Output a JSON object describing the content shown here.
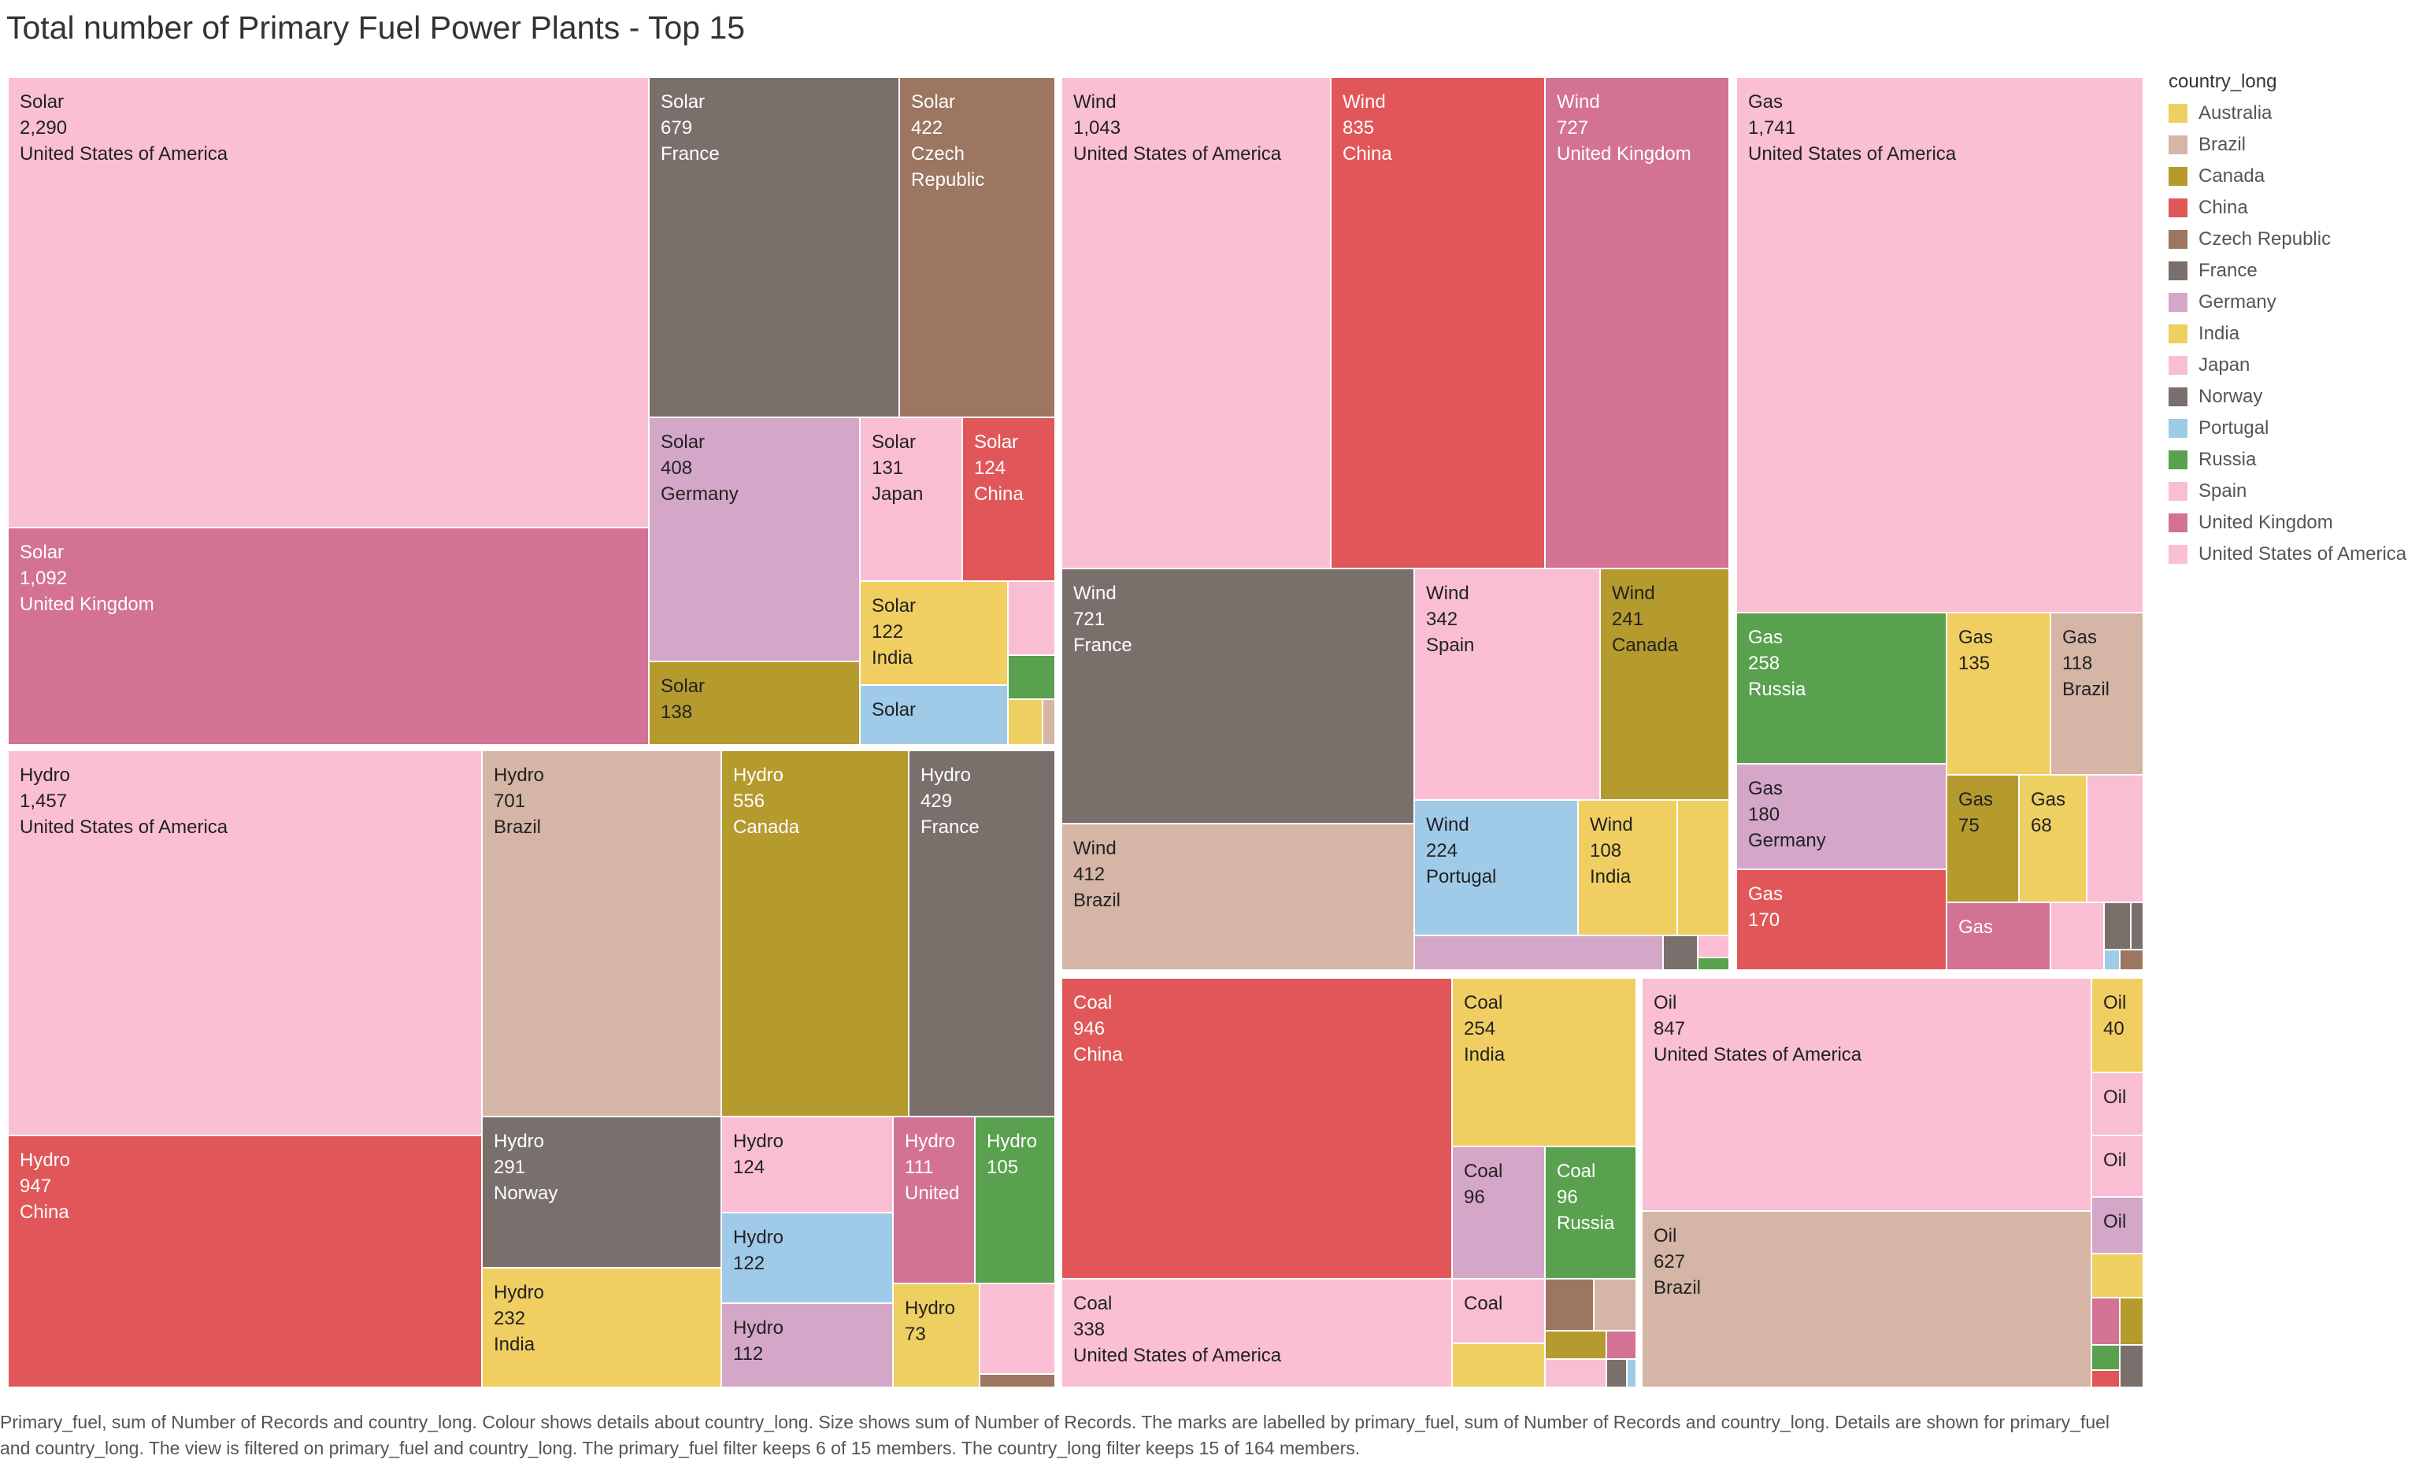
{
  "title": "Total number of Primary Fuel Power Plants - Top 15",
  "legend": {
    "title": "country_long",
    "items": [
      {
        "name": "Australia",
        "color": "#EDCF62"
      },
      {
        "name": "Brazil",
        "color": "#D5B5A5"
      },
      {
        "name": "Canada",
        "color": "#B59A2E"
      },
      {
        "name": "China",
        "color": "#E15759"
      },
      {
        "name": "Czech Republic",
        "color": "#9C7660"
      },
      {
        "name": "France",
        "color": "#7A706B"
      },
      {
        "name": "Germany",
        "color": "#D4A6C8"
      },
      {
        "name": "India",
        "color": "#F0CE62"
      },
      {
        "name": "Japan",
        "color": "#F9BED3"
      },
      {
        "name": "Norway",
        "color": "#79706E"
      },
      {
        "name": "Portugal",
        "color": "#A0CBE8"
      },
      {
        "name": "Russia",
        "color": "#59A14F"
      },
      {
        "name": "Spain",
        "color": "#F9BED3"
      },
      {
        "name": "United Kingdom",
        "color": "#D37295"
      },
      {
        "name": "United States of America",
        "color": "#FABFD2"
      }
    ]
  },
  "caption": "Primary_fuel, sum of Number of Records and country_long.  Colour shows details about country_long.  Size shows sum of Number of Records.  The marks are labelled by primary_fuel, sum of Number of Records and country_long.  Details are shown for primary_fuel and country_long. The view is filtered on primary_fuel and country_long. The primary_fuel filter keeps 6 of 15 members. The country_long filter keeps 15 of 164 members.",
  "chart_data": {
    "type": "treemap",
    "title": "Total number of Primary Fuel Power Plants - Top 15",
    "size_measure": "sum of Number of Records",
    "color_dimension": "country_long",
    "groups": [
      {
        "fuel": "Solar",
        "items": [
          {
            "country": "United States of America",
            "value": 2290,
            "label": [
              "Solar",
              "2,290",
              "United States of America"
            ]
          },
          {
            "country": "United Kingdom",
            "value": 1092,
            "label": [
              "Solar",
              "1,092",
              "United Kingdom"
            ]
          },
          {
            "country": "France",
            "value": 679,
            "label": [
              "Solar",
              "679",
              "France"
            ]
          },
          {
            "country": "Czech Republic",
            "value": 422,
            "label": [
              "Solar",
              "422",
              "Czech",
              "Republic"
            ]
          },
          {
            "country": "Germany",
            "value": 408,
            "label": [
              "Solar",
              "408",
              "Germany"
            ]
          },
          {
            "country": "Japan",
            "value": 131,
            "label": [
              "Solar",
              "131",
              "Japan"
            ]
          },
          {
            "country": "China",
            "value": 124,
            "label": [
              "Solar",
              "124",
              "China"
            ]
          },
          {
            "country": "India",
            "value": 122,
            "label": [
              "Solar",
              "122",
              "India"
            ]
          },
          {
            "country": "Canada",
            "value": 138,
            "label": [
              "Solar",
              "138"
            ]
          },
          {
            "country": "Portugal",
            "value": 60,
            "label": [
              "Solar"
            ]
          },
          {
            "country": "Spain",
            "value": 50,
            "label": []
          },
          {
            "country": "Russia",
            "value": 45,
            "label": []
          },
          {
            "country": "Australia",
            "value": 25,
            "label": []
          },
          {
            "country": "Brazil",
            "value": 10,
            "label": []
          }
        ]
      },
      {
        "fuel": "Hydro",
        "items": [
          {
            "country": "United States of America",
            "value": 1457,
            "label": [
              "Hydro",
              "1,457",
              "United States of America"
            ]
          },
          {
            "country": "China",
            "value": 947,
            "label": [
              "Hydro",
              "947",
              "China"
            ]
          },
          {
            "country": "Brazil",
            "value": 701,
            "label": [
              "Hydro",
              "701",
              "Brazil"
            ]
          },
          {
            "country": "Canada",
            "value": 556,
            "label": [
              "Hydro",
              "556",
              "Canada"
            ]
          },
          {
            "country": "France",
            "value": 429,
            "label": [
              "Hydro",
              "429",
              "France"
            ]
          },
          {
            "country": "Norway",
            "value": 291,
            "label": [
              "Hydro",
              "291",
              "Norway"
            ]
          },
          {
            "country": "India",
            "value": 232,
            "label": [
              "Hydro",
              "232",
              "India"
            ]
          },
          {
            "country": "Japan",
            "value": 124,
            "label": [
              "Hydro",
              "124"
            ]
          },
          {
            "country": "Portugal",
            "value": 122,
            "label": [
              "Hydro",
              "122"
            ]
          },
          {
            "country": "Germany",
            "value": 112,
            "label": [
              "Hydro",
              "112"
            ]
          },
          {
            "country": "United Kingdom",
            "value": 111,
            "label": [
              "Hydro",
              "111",
              "United"
            ]
          },
          {
            "country": "Russia",
            "value": 105,
            "label": [
              "Hydro",
              "105"
            ]
          },
          {
            "country": "Australia",
            "value": 73,
            "label": [
              "Hydro",
              "73"
            ]
          },
          {
            "country": "Spain",
            "value": 60,
            "label": []
          },
          {
            "country": "Czech Republic",
            "value": 10,
            "label": []
          }
        ]
      },
      {
        "fuel": "Wind",
        "items": [
          {
            "country": "United States of America",
            "value": 1043,
            "label": [
              "Wind",
              "1,043",
              "United States of America"
            ]
          },
          {
            "country": "China",
            "value": 835,
            "label": [
              "Wind",
              "835",
              "China"
            ]
          },
          {
            "country": "United Kingdom",
            "value": 727,
            "label": [
              "Wind",
              "727",
              "United Kingdom"
            ]
          },
          {
            "country": "France",
            "value": 721,
            "label": [
              "Wind",
              "721",
              "France"
            ]
          },
          {
            "country": "Brazil",
            "value": 412,
            "label": [
              "Wind",
              "412",
              "Brazil"
            ]
          },
          {
            "country": "Spain",
            "value": 342,
            "label": [
              "Wind",
              "342",
              "Spain"
            ]
          },
          {
            "country": "Canada",
            "value": 241,
            "label": [
              "Wind",
              "241",
              "Canada"
            ]
          },
          {
            "country": "Portugal",
            "value": 224,
            "label": [
              "Wind",
              "224",
              "Portugal"
            ]
          },
          {
            "country": "India",
            "value": 108,
            "label": [
              "Wind",
              "108",
              "India"
            ]
          },
          {
            "country": "Australia",
            "value": 70,
            "label": []
          },
          {
            "country": "Germany",
            "value": 40,
            "label": []
          },
          {
            "country": "Norway",
            "value": 15,
            "label": []
          },
          {
            "country": "Japan",
            "value": 12,
            "label": []
          },
          {
            "country": "Russia",
            "value": 5,
            "label": []
          }
        ]
      },
      {
        "fuel": "Gas",
        "items": [
          {
            "country": "United States of America",
            "value": 1741,
            "label": [
              "Gas",
              "1,741",
              "United States of America"
            ]
          },
          {
            "country": "Russia",
            "value": 258,
            "label": [
              "Gas",
              "258",
              "Russia"
            ]
          },
          {
            "country": "India",
            "value": 135,
            "label": [
              "Gas",
              "135"
            ]
          },
          {
            "country": "Brazil",
            "value": 118,
            "label": [
              "Gas",
              "118",
              "Brazil"
            ]
          },
          {
            "country": "Germany",
            "value": 180,
            "label": [
              "Gas",
              "180",
              "Germany"
            ]
          },
          {
            "country": "China",
            "value": 170,
            "label": [
              "Gas",
              "170"
            ]
          },
          {
            "country": "Canada",
            "value": 75,
            "label": [
              "Gas",
              "75"
            ]
          },
          {
            "country": "Australia",
            "value": 68,
            "label": [
              "Gas",
              "68"
            ]
          },
          {
            "country": "United Kingdom",
            "value": 60,
            "label": [
              "Gas"
            ]
          },
          {
            "country": "Japan",
            "value": 55,
            "label": []
          },
          {
            "country": "Spain",
            "value": 30,
            "label": []
          },
          {
            "country": "France",
            "value": 12,
            "label": []
          },
          {
            "country": "Norway",
            "value": 10,
            "label": []
          },
          {
            "country": "Portugal",
            "value": 5,
            "label": []
          },
          {
            "country": "Czech Republic",
            "value": 4,
            "label": []
          }
        ]
      },
      {
        "fuel": "Coal",
        "items": [
          {
            "country": "China",
            "value": 946,
            "label": [
              "Coal",
              "946",
              "China"
            ]
          },
          {
            "country": "United States of America",
            "value": 338,
            "label": [
              "Coal",
              "338",
              "United States of America"
            ]
          },
          {
            "country": "India",
            "value": 254,
            "label": [
              "Coal",
              "254",
              "India"
            ]
          },
          {
            "country": "Germany",
            "value": 96,
            "label": [
              "Coal",
              "96"
            ]
          },
          {
            "country": "Russia",
            "value": 96,
            "label": [
              "Coal",
              "96",
              "Russia"
            ]
          },
          {
            "country": "Japan",
            "value": 70,
            "label": [
              "Coal"
            ]
          },
          {
            "country": "Australia",
            "value": 50,
            "label": []
          },
          {
            "country": "Czech Republic",
            "value": 25,
            "label": []
          },
          {
            "country": "Brazil",
            "value": 25,
            "label": []
          },
          {
            "country": "Canada",
            "value": 15,
            "label": []
          },
          {
            "country": "United Kingdom",
            "value": 15,
            "label": []
          },
          {
            "country": "Spain",
            "value": 12,
            "label": []
          },
          {
            "country": "France",
            "value": 5,
            "label": []
          },
          {
            "country": "Portugal",
            "value": 3,
            "label": []
          }
        ]
      },
      {
        "fuel": "Oil",
        "items": [
          {
            "country": "United States of America",
            "value": 847,
            "label": [
              "Oil",
              "847",
              "United States of America"
            ]
          },
          {
            "country": "Brazil",
            "value": 627,
            "label": [
              "Oil",
              "627",
              "Brazil"
            ]
          },
          {
            "country": "India",
            "value": 40,
            "label": [
              "Oil",
              "40"
            ]
          },
          {
            "country": "Japan",
            "value": 35,
            "label": [
              "Oil"
            ]
          },
          {
            "country": "Spain",
            "value": 35,
            "label": [
              "Oil"
            ]
          },
          {
            "country": "Germany",
            "value": 30,
            "label": [
              "Oil"
            ]
          },
          {
            "country": "Australia",
            "value": 20,
            "label": []
          },
          {
            "country": "United Kingdom",
            "value": 15,
            "label": []
          },
          {
            "country": "Canada",
            "value": 15,
            "label": []
          },
          {
            "country": "Russia",
            "value": 8,
            "label": []
          },
          {
            "country": "China",
            "value": 5,
            "label": []
          },
          {
            "country": "France",
            "value": 5,
            "label": []
          }
        ]
      }
    ]
  }
}
